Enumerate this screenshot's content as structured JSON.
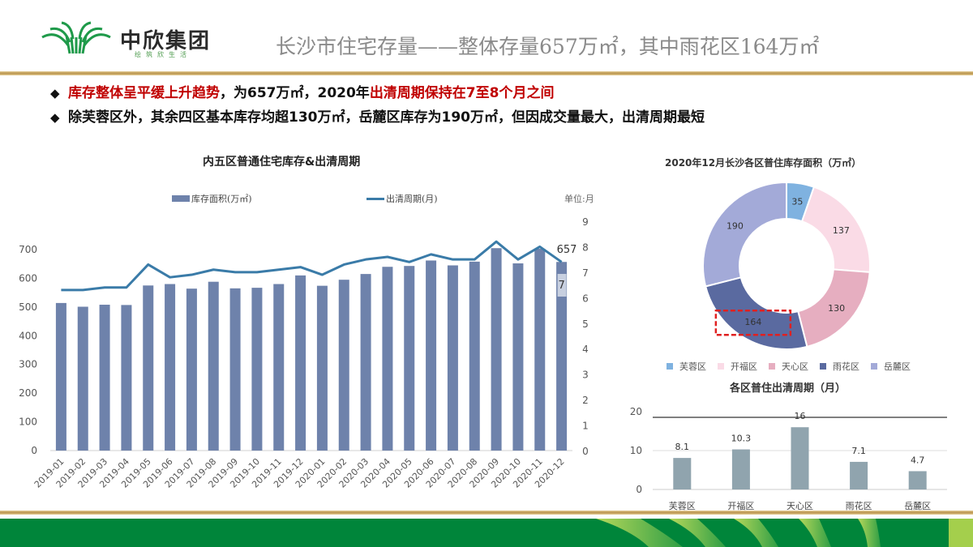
{
  "header": {
    "company_name": "中欣集团",
    "slogan": "绘筑欣生活",
    "page_title": "长沙市住宅存量——整体存量657万㎡，其中雨花区164万㎡"
  },
  "bullets": [
    {
      "segments": [
        {
          "text": "库存整体呈平缓上升趋势",
          "red": true
        },
        {
          "text": "，为657万㎡，2020年",
          "red": false
        },
        {
          "text": "出清周期保持在7至8个月之间",
          "red": true
        }
      ]
    },
    {
      "segments": [
        {
          "text": "除芙蓉区外，其余四区基本库存均超130万㎡，岳麓区库存为190万㎡，但因成交量最大，出清周期最短",
          "red": false
        }
      ]
    }
  ],
  "left_chart": {
    "title": "内五区普通住宅库存&出清周期",
    "legend_bar": "库存面积(万㎡)",
    "legend_line": "出清周期(月)",
    "unit": "单位:月",
    "last_bar_label": "657",
    "last_line_label": "7"
  },
  "donut_chart": {
    "title": "2020年12月长沙各区普住库存面积（万㎡）"
  },
  "period_chart": {
    "title": "各区普住出清周期（月）"
  },
  "colors": {
    "bar": "#6e82ab",
    "line": "#3a7ba8",
    "furong": "#7fb2e0",
    "kaifu": "#fadbe6",
    "tianxin": "#e6aec0",
    "yuhua": "#5a6aa0",
    "yuelu": "#a3aad8",
    "period_bar": "#90a4ae",
    "highlight": "#e02020",
    "footer_green": "#00853a"
  },
  "chart_data": [
    {
      "type": "bar+line",
      "title": "内五区普通住宅库存&出清周期",
      "categories": [
        "2019-01",
        "2019-02",
        "2019-03",
        "2019-04",
        "2019-05",
        "2019-06",
        "2019-07",
        "2019-08",
        "2019-09",
        "2019-10",
        "2019-11",
        "2019-12",
        "2020-01",
        "2020-02",
        "2020-03",
        "2020-04",
        "2020-05",
        "2020-06",
        "2020-07",
        "2020-08",
        "2020-09",
        "2020-10",
        "2020-11",
        "2020-12"
      ],
      "series": [
        {
          "name": "库存面积(万㎡)",
          "type": "bar",
          "axis": "left",
          "values": [
            514,
            501,
            508,
            507,
            575,
            580,
            564,
            588,
            565,
            567,
            580,
            610,
            574,
            595,
            615,
            640,
            643,
            662,
            645,
            658,
            705,
            652,
            703,
            657
          ]
        },
        {
          "name": "出清周期(月)",
          "type": "line",
          "axis": "right",
          "values": [
            6.3,
            6.3,
            6.4,
            6.4,
            7.3,
            6.8,
            6.9,
            7.1,
            7.0,
            7.0,
            7.1,
            7.2,
            6.9,
            7.3,
            7.5,
            7.6,
            7.4,
            7.7,
            7.5,
            7.5,
            8.2,
            7.5,
            8.0,
            7.4
          ]
        }
      ],
      "ylabel_left": "库存面积(万㎡)",
      "ylabel_right": "出清周期(月)",
      "ylim_left": [
        0,
        700
      ],
      "yticks_left": [
        0,
        100,
        200,
        300,
        400,
        500,
        600,
        700
      ],
      "ylim_right": [
        0,
        9
      ],
      "yticks_right": [
        0,
        1,
        2,
        3,
        4,
        5,
        6,
        7,
        8,
        9
      ],
      "annotations": [
        {
          "x": "2020-12",
          "text": "657"
        },
        {
          "x": "2020-12",
          "text": "7"
        }
      ],
      "legend_position": "top",
      "grid": false
    },
    {
      "type": "pie",
      "donut": true,
      "title": "2020年12月长沙各区普住库存面积（万㎡）",
      "categories": [
        "芙蓉区",
        "开福区",
        "天心区",
        "雨花区",
        "岳麓区"
      ],
      "values": [
        35,
        137,
        130,
        164,
        190
      ],
      "highlight": "雨花区",
      "legend_position": "bottom"
    },
    {
      "type": "bar",
      "title": "各区普住出清周期（月）",
      "categories": [
        "芙蓉区",
        "开福区",
        "天心区",
        "雨花区",
        "岳麓区"
      ],
      "values": [
        8.1,
        10.3,
        16,
        7.1,
        4.7
      ],
      "ylim": [
        0,
        20
      ],
      "yticks": [
        0,
        10,
        20
      ],
      "grid": true
    }
  ]
}
